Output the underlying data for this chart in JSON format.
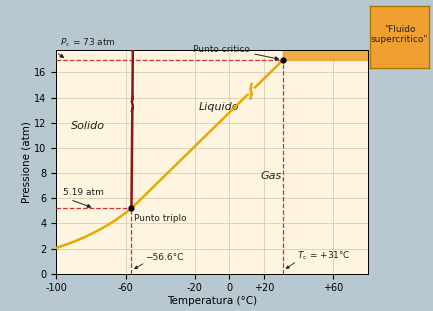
{
  "xlabel": "Temperatura (°C)",
  "ylabel": "Pressione (atm)",
  "xlim": [
    -100,
    80
  ],
  "ylim": [
    0,
    17.8
  ],
  "xticks": [
    -100,
    -60,
    -20,
    0,
    20,
    60
  ],
  "xticklabels": [
    "-100",
    "-60",
    "-20",
    "0",
    "+20",
    "+60"
  ],
  "yticks": [
    0,
    2,
    4,
    6,
    8,
    10,
    12,
    14,
    16
  ],
  "triple_point": [
    -56.6,
    5.19
  ],
  "critical_point": [
    31.0,
    17.0
  ],
  "Pc_val": 17.0,
  "bg_color": "#b8c8d0",
  "plot_bg": "#fdf5df",
  "supercritical_bg": "#f0a030",
  "grid_color": "#d8cdb0",
  "solid_liquid_color": "#8b1515",
  "liquid_gas_color": "#e8a800",
  "solid_gas_color": "#e8a800",
  "dashed_line_color": "#cc3333",
  "text_color": "#222222"
}
